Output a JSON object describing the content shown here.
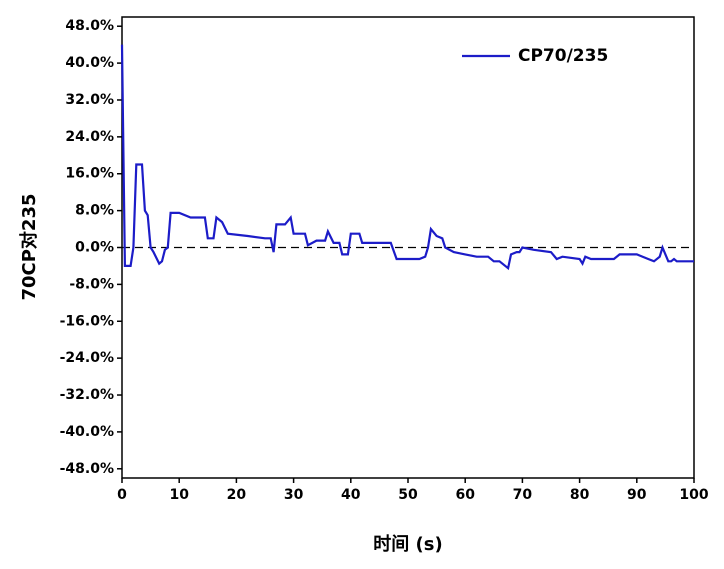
{
  "chart_data": {
    "type": "line",
    "x_label": "时间 (s)",
    "y_label": "70CP对235",
    "xlim": [
      0,
      100
    ],
    "xticks": [
      0,
      10,
      20,
      30,
      40,
      50,
      60,
      70,
      80,
      90,
      100
    ],
    "ylim": [
      -50,
      50
    ],
    "yticks": [
      {
        "value": 48,
        "label": "48.0%"
      },
      {
        "value": 40,
        "label": "40.0%"
      },
      {
        "value": 32,
        "label": "32.0%"
      },
      {
        "value": 24,
        "label": "24.0%"
      },
      {
        "value": 16,
        "label": "16.0%"
      },
      {
        "value": 8,
        "label": "8.0%"
      },
      {
        "value": 0,
        "label": "0.0%"
      },
      {
        "value": -8,
        "label": "-8.0%"
      },
      {
        "value": -16,
        "label": "-16.0%"
      },
      {
        "value": -24,
        "label": "-24.0%"
      },
      {
        "value": -32,
        "label": "-32.0%"
      },
      {
        "value": -40,
        "label": "-40.0%"
      },
      {
        "value": -48,
        "label": "-48.0%"
      }
    ],
    "reference_line": 0,
    "legend_position": "upper right",
    "series": [
      {
        "name": "CP70/235",
        "color": "#1c1cc8",
        "x": [
          0,
          0.5,
          1.5,
          2,
          2.5,
          3.5,
          4,
          4.5,
          5,
          5.5,
          6.5,
          7,
          7.5,
          8,
          8.5,
          10,
          12,
          14.5,
          15,
          16,
          16.5,
          17.5,
          18.5,
          22,
          25,
          26,
          26.5,
          27,
          28.5,
          29.5,
          30,
          32,
          32.5,
          34,
          35.5,
          36,
          37,
          38,
          38.5,
          39.5,
          40,
          41.5,
          42,
          47,
          48,
          52,
          53,
          53.5,
          54,
          55,
          56,
          56.5,
          58,
          60,
          62,
          64,
          65,
          66,
          67.5,
          68,
          69,
          69.5,
          70,
          72,
          75,
          76,
          77,
          80,
          80.5,
          81,
          82,
          86,
          87,
          90,
          92,
          93,
          94,
          94.5,
          95.5,
          96,
          96.5,
          97,
          100
        ],
        "values": [
          44,
          -4,
          -4,
          0,
          18,
          18,
          8,
          7,
          0,
          -1,
          -3.5,
          -3,
          -0.5,
          0,
          7.5,
          7.5,
          6.5,
          6.5,
          2,
          2,
          6.5,
          5.5,
          3,
          2.5,
          2,
          2,
          -1,
          5,
          5,
          6.5,
          3,
          3,
          0.5,
          1.5,
          1.5,
          3.5,
          1,
          1,
          -1.5,
          -1.5,
          3,
          3,
          1,
          1,
          -2.5,
          -2.5,
          -2,
          0,
          4,
          2.5,
          2,
          0,
          -1,
          -1.5,
          -2,
          -2,
          -3,
          -3,
          -4.5,
          -1.5,
          -1,
          -1,
          0,
          -0.5,
          -1,
          -2.5,
          -2,
          -2.5,
          -3.5,
          -2,
          -2.5,
          -2.5,
          -1.5,
          -1.5,
          -2.5,
          -3,
          -2,
          0,
          -3,
          -3,
          -2.5,
          -3,
          -3
        ]
      }
    ]
  }
}
